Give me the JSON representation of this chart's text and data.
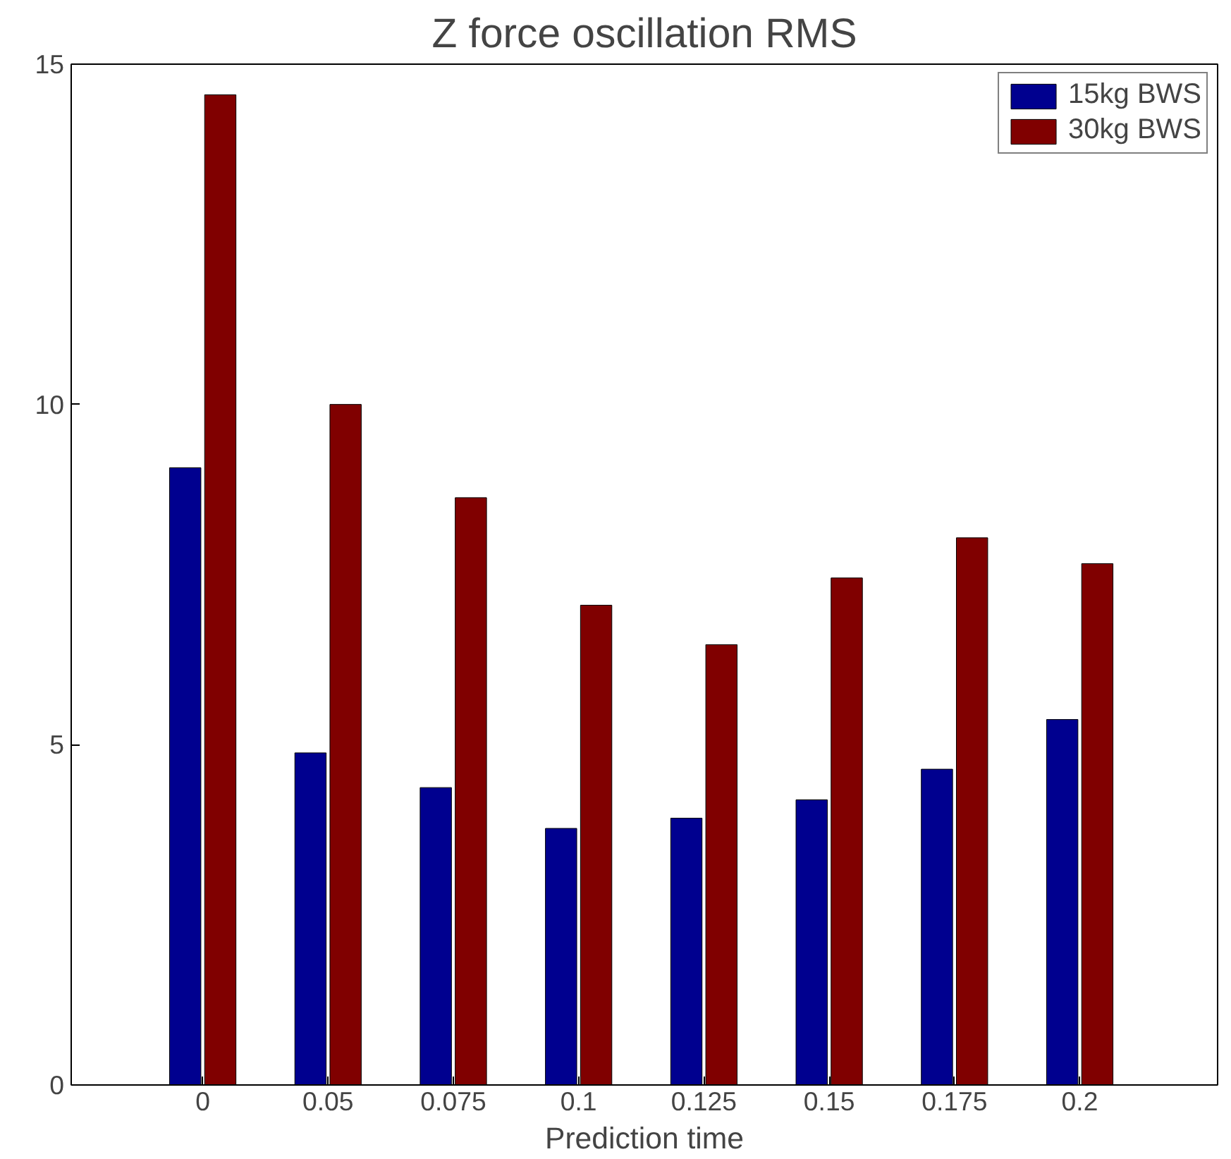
{
  "chart_data": {
    "type": "bar",
    "title": "Z force oscillation RMS",
    "xlabel": "Prediction time",
    "categories": [
      "0",
      "0.05",
      "0.075",
      "0.1",
      "0.125",
      "0.15",
      "0.175",
      "0.2"
    ],
    "series": [
      {
        "name": "15kg BWS",
        "color": "#00008f",
        "values": [
          9.07,
          4.88,
          4.37,
          3.77,
          3.92,
          4.19,
          4.64,
          5.37
        ]
      },
      {
        "name": "30kg BWS",
        "color": "#800000",
        "values": [
          14.55,
          10.0,
          8.63,
          7.05,
          6.47,
          7.45,
          8.04,
          7.66
        ]
      }
    ],
    "ylim": [
      0,
      15
    ],
    "yticks": [
      0,
      5,
      10,
      15
    ],
    "grid": false,
    "legend": "top right"
  }
}
